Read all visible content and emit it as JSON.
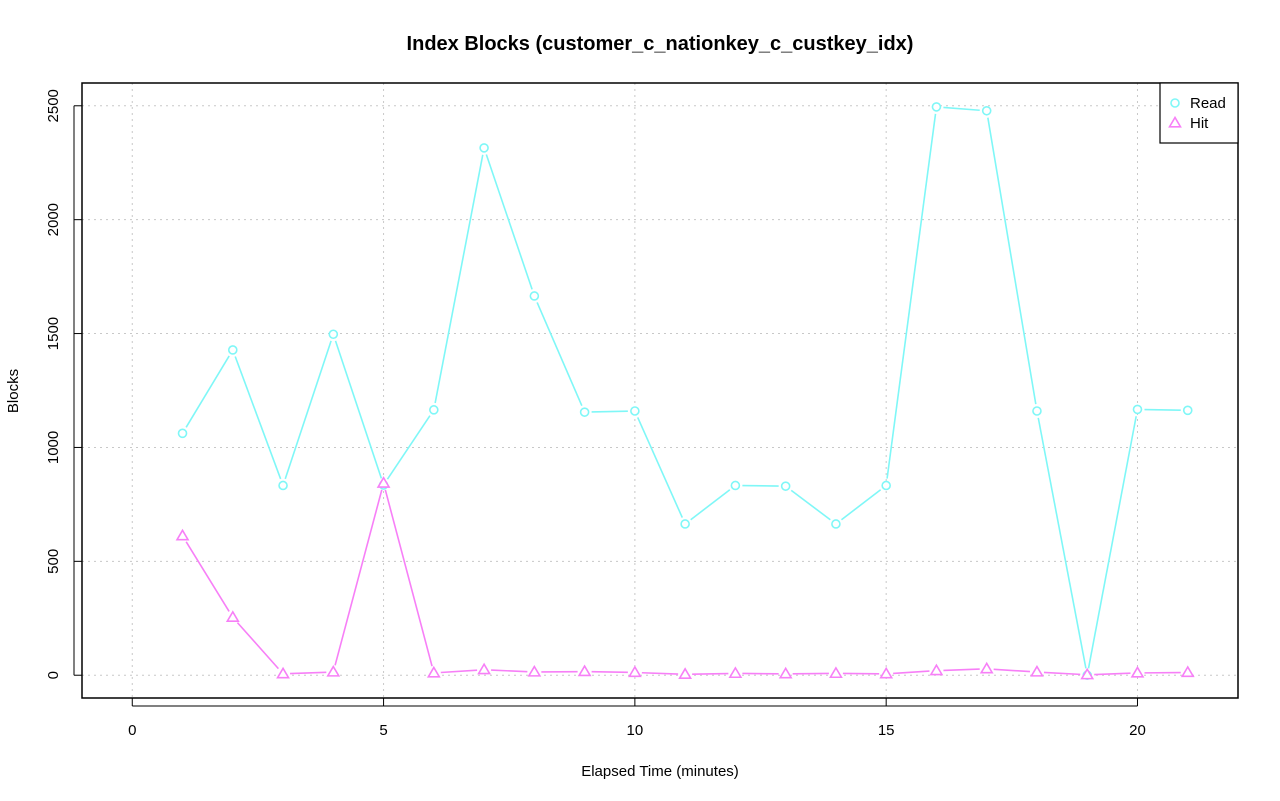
{
  "chart_data": {
    "type": "line",
    "title": "Index Blocks (customer_c_nationkey_c_custkey_idx)",
    "xlabel": "Elapsed Time (minutes)",
    "ylabel": "Blocks",
    "xlim": [
      -1,
      22
    ],
    "ylim": [
      -100,
      2600
    ],
    "x_ticks": [
      0,
      5,
      10,
      15,
      20
    ],
    "y_ticks": [
      0,
      500,
      1000,
      1500,
      2000,
      2500
    ],
    "grid": true,
    "legend_position": "top-right",
    "x": [
      1,
      2,
      3,
      4,
      5,
      6,
      7,
      8,
      9,
      10,
      11,
      12,
      13,
      14,
      15,
      16,
      17,
      18,
      19,
      20,
      21
    ],
    "series": [
      {
        "name": "Read",
        "color": "#7ff7f7",
        "marker": "circle",
        "values": [
          1062,
          1428,
          833,
          1497,
          835,
          1165,
          2315,
          1665,
          1155,
          1160,
          664,
          833,
          830,
          664,
          833,
          2495,
          2478,
          1160,
          0,
          1167,
          1163
        ]
      },
      {
        "name": "Hit",
        "color": "#f77ff7",
        "marker": "triangle",
        "values": [
          612,
          254,
          6,
          14,
          843,
          10,
          24,
          14,
          16,
          12,
          4,
          8,
          6,
          8,
          6,
          20,
          28,
          14,
          2,
          10,
          12
        ]
      }
    ]
  }
}
